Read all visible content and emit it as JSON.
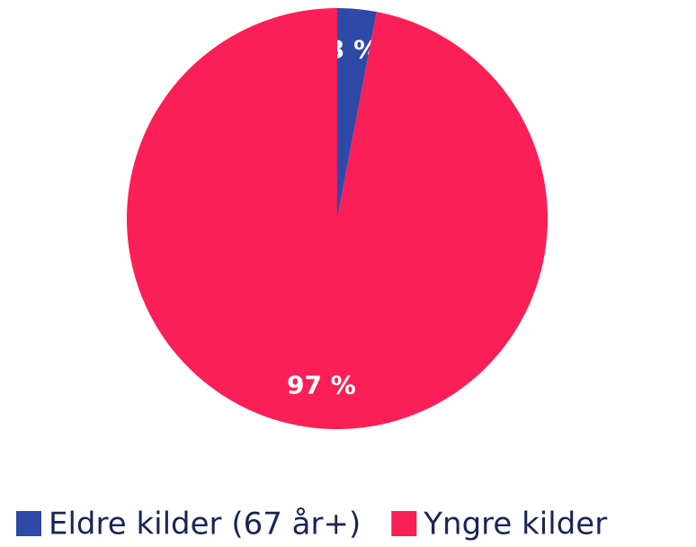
{
  "chart_data": {
    "type": "pie",
    "categories": [
      "Eldre kilder (67 år+)",
      "Yngre kilder"
    ],
    "values": [
      3,
      97
    ],
    "value_labels": [
      "3 %",
      "97 %"
    ],
    "colors": [
      "#2f49a8",
      "#fb1f57"
    ],
    "legend": "bottom"
  }
}
